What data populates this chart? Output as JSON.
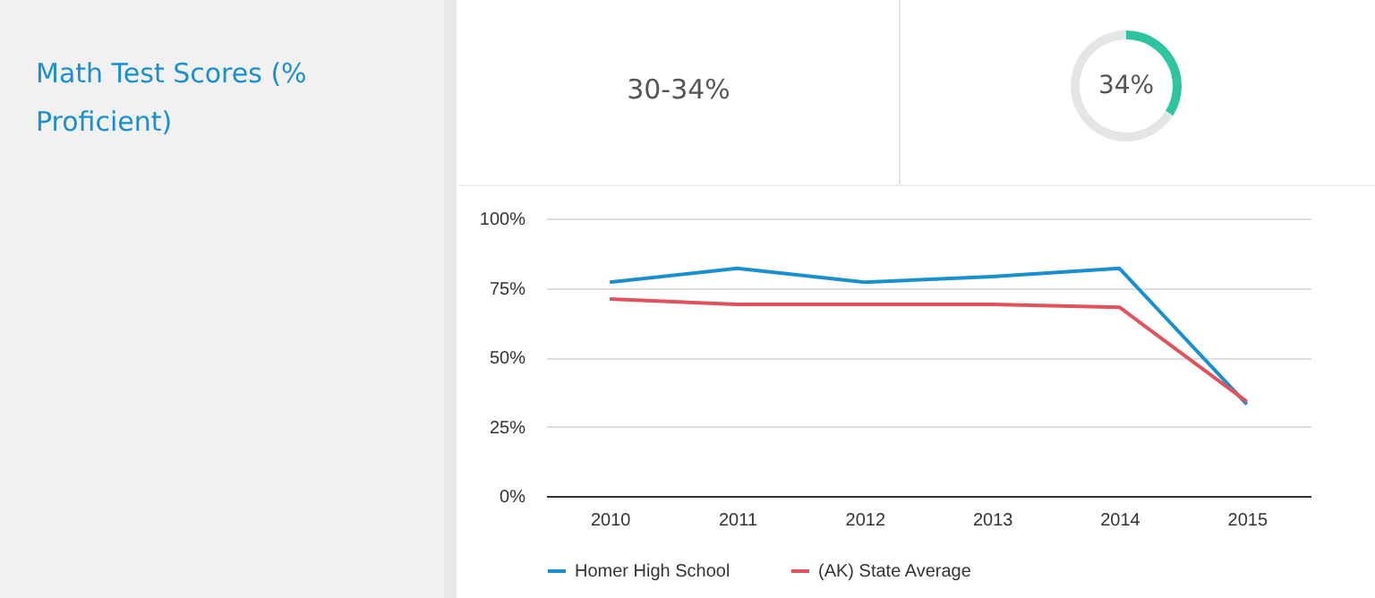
{
  "chart_data": [
    {
      "type": "other",
      "title": "Math Test Scores (% Proficient)",
      "annotations": [
        "30-34%"
      ]
    },
    {
      "type": "donut",
      "categories": [
        null,
        null
      ],
      "values": [
        34,
        66
      ],
      "colors": [
        "#2ec4a0",
        "#e3e6e5"
      ],
      "annotations": [
        "34%"
      ]
    },
    {
      "type": "line",
      "categories": [
        "2010",
        "2011",
        "2012",
        "2013",
        "2014",
        "2015"
      ],
      "series": [
        {
          "name": "Homer High School",
          "color": "#1a8fcf",
          "values": [
            77,
            82,
            77,
            79,
            82,
            33
          ]
        },
        {
          "name": "(AK) State Average",
          "color": "#e0525c",
          "values": [
            71,
            69,
            69,
            69,
            68,
            34
          ]
        }
      ],
      "ylim": [
        0,
        100
      ],
      "yticks": [
        {
          "value": 0,
          "label": "0%"
        },
        {
          "value": 25,
          "label": "25%"
        },
        {
          "value": 50,
          "label": "50%"
        },
        {
          "value": 75,
          "label": "75%"
        },
        {
          "value": 100,
          "label": "100%"
        }
      ],
      "grid": "y",
      "legend": "bottom",
      "marker": "none",
      "line_style": "solid"
    }
  ]
}
